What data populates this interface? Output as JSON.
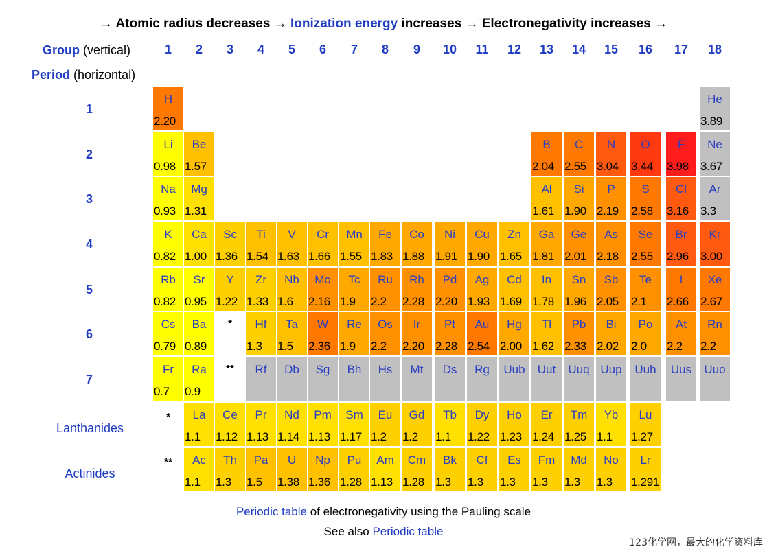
{
  "headline": {
    "arrow": "→",
    "p1": "Atomic radius decreases",
    "p2": "Ionization energy",
    "p3": "increases",
    "p4": "Electronegativity increases"
  },
  "group_label": {
    "bold": "Group",
    "rest": "(vertical)"
  },
  "period_label": {
    "bold": "Period",
    "rest": "(horizontal)"
  },
  "groups": [
    "1",
    "2",
    "3",
    "4",
    "5",
    "6",
    "7",
    "8",
    "9",
    "10",
    "11",
    "12",
    "13",
    "14",
    "15",
    "16",
    "17",
    "18"
  ],
  "periods": [
    "1",
    "2",
    "3",
    "4",
    "5",
    "6",
    "7"
  ],
  "lanthanides_label": "Lanthanides",
  "actinides_label": "Actinides",
  "marker_lanthanides": "*",
  "marker_actinides": "**",
  "colors": {
    "yellow": "#ffff00",
    "y2": "#ffe000",
    "y3": "#ffd000",
    "o1": "#ffc000",
    "o2": "#ffa800",
    "o3": "#ff9000",
    "o4": "#ff7800",
    "o5": "#ff5a10",
    "r1": "#ff3a10",
    "r2": "#ff1c1c",
    "gray": "#c0c0c0"
  },
  "elements": [
    {
      "s": "H",
      "v": "2.20",
      "p": 1,
      "g": 1,
      "c": "o4"
    },
    {
      "s": "He",
      "v": "3.89",
      "p": 1,
      "g": 18,
      "c": "gray"
    },
    {
      "s": "Li",
      "v": "0.98",
      "p": 2,
      "g": 1,
      "c": "yellow"
    },
    {
      "s": "Be",
      "v": "1.57",
      "p": 2,
      "g": 2,
      "c": "o1"
    },
    {
      "s": "B",
      "v": "2.04",
      "p": 2,
      "g": 13,
      "c": "o4"
    },
    {
      "s": "C",
      "v": "2.55",
      "p": 2,
      "g": 14,
      "c": "o4"
    },
    {
      "s": "N",
      "v": "3.04",
      "p": 2,
      "g": 15,
      "c": "o5"
    },
    {
      "s": "O",
      "v": "3.44",
      "p": 2,
      "g": 16,
      "c": "r1"
    },
    {
      "s": "F",
      "v": "3.98",
      "p": 2,
      "g": 17,
      "c": "r2"
    },
    {
      "s": "Ne",
      "v": "3.67",
      "p": 2,
      "g": 18,
      "c": "gray"
    },
    {
      "s": "Na",
      "v": "0.93",
      "p": 3,
      "g": 1,
      "c": "yellow"
    },
    {
      "s": "Mg",
      "v": "1.31",
      "p": 3,
      "g": 2,
      "c": "y2"
    },
    {
      "s": "Al",
      "v": "1.61",
      "p": 3,
      "g": 13,
      "c": "o1"
    },
    {
      "s": "Si",
      "v": "1.90",
      "p": 3,
      "g": 14,
      "c": "o2"
    },
    {
      "s": "P",
      "v": "2.19",
      "p": 3,
      "g": 15,
      "c": "o3"
    },
    {
      "s": "S",
      "v": "2.58",
      "p": 3,
      "g": 16,
      "c": "o4"
    },
    {
      "s": "Cl",
      "v": "3.16",
      "p": 3,
      "g": 17,
      "c": "o5"
    },
    {
      "s": "Ar",
      "v": "3.3",
      "p": 3,
      "g": 18,
      "c": "gray"
    },
    {
      "s": "K",
      "v": "0.82",
      "p": 4,
      "g": 1,
      "c": "yellow"
    },
    {
      "s": "Ca",
      "v": "1.00",
      "p": 4,
      "g": 2,
      "c": "y2"
    },
    {
      "s": "Sc",
      "v": "1.36",
      "p": 4,
      "g": 3,
      "c": "y3"
    },
    {
      "s": "Ti",
      "v": "1.54",
      "p": 4,
      "g": 4,
      "c": "o1"
    },
    {
      "s": "V",
      "v": "1.63",
      "p": 4,
      "g": 5,
      "c": "o1"
    },
    {
      "s": "Cr",
      "v": "1.66",
      "p": 4,
      "g": 6,
      "c": "o1"
    },
    {
      "s": "Mn",
      "v": "1.55",
      "p": 4,
      "g": 7,
      "c": "o1"
    },
    {
      "s": "Fe",
      "v": "1.83",
      "p": 4,
      "g": 8,
      "c": "o2"
    },
    {
      "s": "Co",
      "v": "1.88",
      "p": 4,
      "g": 9,
      "c": "o2"
    },
    {
      "s": "Ni",
      "v": "1.91",
      "p": 4,
      "g": 10,
      "c": "o2"
    },
    {
      "s": "Cu",
      "v": "1.90",
      "p": 4,
      "g": 11,
      "c": "o2"
    },
    {
      "s": "Zn",
      "v": "1.65",
      "p": 4,
      "g": 12,
      "c": "o1"
    },
    {
      "s": "Ga",
      "v": "1.81",
      "p": 4,
      "g": 13,
      "c": "o2"
    },
    {
      "s": "Ge",
      "v": "2.01",
      "p": 4,
      "g": 14,
      "c": "o3"
    },
    {
      "s": "As",
      "v": "2.18",
      "p": 4,
      "g": 15,
      "c": "o3"
    },
    {
      "s": "Se",
      "v": "2.55",
      "p": 4,
      "g": 16,
      "c": "o4"
    },
    {
      "s": "Br",
      "v": "2.96",
      "p": 4,
      "g": 17,
      "c": "o5"
    },
    {
      "s": "Kr",
      "v": "3.00",
      "p": 4,
      "g": 18,
      "c": "o5"
    },
    {
      "s": "Rb",
      "v": "0.82",
      "p": 5,
      "g": 1,
      "c": "yellow"
    },
    {
      "s": "Sr",
      "v": "0.95",
      "p": 5,
      "g": 2,
      "c": "yellow"
    },
    {
      "s": "Y",
      "v": "1.22",
      "p": 5,
      "g": 3,
      "c": "y3"
    },
    {
      "s": "Zr",
      "v": "1.33",
      "p": 5,
      "g": 4,
      "c": "y3"
    },
    {
      "s": "Nb",
      "v": "1.6",
      "p": 5,
      "g": 5,
      "c": "o1"
    },
    {
      "s": "Mo",
      "v": "2.16",
      "p": 5,
      "g": 6,
      "c": "o3"
    },
    {
      "s": "Tc",
      "v": "1.9",
      "p": 5,
      "g": 7,
      "c": "o2"
    },
    {
      "s": "Ru",
      "v": "2.2",
      "p": 5,
      "g": 8,
      "c": "o3"
    },
    {
      "s": "Rh",
      "v": "2.28",
      "p": 5,
      "g": 9,
      "c": "o3"
    },
    {
      "s": "Pd",
      "v": "2.20",
      "p": 5,
      "g": 10,
      "c": "o3"
    },
    {
      "s": "Ag",
      "v": "1.93",
      "p": 5,
      "g": 11,
      "c": "o2"
    },
    {
      "s": "Cd",
      "v": "1.69",
      "p": 5,
      "g": 12,
      "c": "o1"
    },
    {
      "s": "In",
      "v": "1.78",
      "p": 5,
      "g": 13,
      "c": "o1"
    },
    {
      "s": "Sn",
      "v": "1.96",
      "p": 5,
      "g": 14,
      "c": "o2"
    },
    {
      "s": "Sb",
      "v": "2.05",
      "p": 5,
      "g": 15,
      "c": "o3"
    },
    {
      "s": "Te",
      "v": "2.1",
      "p": 5,
      "g": 16,
      "c": "o3"
    },
    {
      "s": "I",
      "v": "2.66",
      "p": 5,
      "g": 17,
      "c": "o4"
    },
    {
      "s": "Xe",
      "v": "2.67",
      "p": 5,
      "g": 18,
      "c": "o4"
    },
    {
      "s": "Cs",
      "v": "0.79",
      "p": 6,
      "g": 1,
      "c": "yellow"
    },
    {
      "s": "Ba",
      "v": "0.89",
      "p": 6,
      "g": 2,
      "c": "yellow"
    },
    {
      "s": "Hf",
      "v": "1.3",
      "p": 6,
      "g": 4,
      "c": "y3"
    },
    {
      "s": "Ta",
      "v": "1.5",
      "p": 6,
      "g": 5,
      "c": "o1"
    },
    {
      "s": "W",
      "v": "2.36",
      "p": 6,
      "g": 6,
      "c": "o4"
    },
    {
      "s": "Re",
      "v": "1.9",
      "p": 6,
      "g": 7,
      "c": "o2"
    },
    {
      "s": "Os",
      "v": "2.2",
      "p": 6,
      "g": 8,
      "c": "o3"
    },
    {
      "s": "Ir",
      "v": "2.20",
      "p": 6,
      "g": 9,
      "c": "o3"
    },
    {
      "s": "Pt",
      "v": "2.28",
      "p": 6,
      "g": 10,
      "c": "o3"
    },
    {
      "s": "Au",
      "v": "2.54",
      "p": 6,
      "g": 11,
      "c": "o4"
    },
    {
      "s": "Hg",
      "v": "2.00",
      "p": 6,
      "g": 12,
      "c": "o2"
    },
    {
      "s": "Tl",
      "v": "1.62",
      "p": 6,
      "g": 13,
      "c": "o1"
    },
    {
      "s": "Pb",
      "v": "2.33",
      "p": 6,
      "g": 14,
      "c": "o3"
    },
    {
      "s": "Bi",
      "v": "2.02",
      "p": 6,
      "g": 15,
      "c": "o2"
    },
    {
      "s": "Po",
      "v": "2.0",
      "p": 6,
      "g": 16,
      "c": "o2"
    },
    {
      "s": "At",
      "v": "2.2",
      "p": 6,
      "g": 17,
      "c": "o3"
    },
    {
      "s": "Rn",
      "v": "2.2",
      "p": 6,
      "g": 18,
      "c": "o3"
    },
    {
      "s": "Fr",
      "v": "0.7",
      "p": 7,
      "g": 1,
      "c": "yellow"
    },
    {
      "s": "Ra",
      "v": "0.9",
      "p": 7,
      "g": 2,
      "c": "yellow"
    },
    {
      "s": "Rf",
      "v": "",
      "p": 7,
      "g": 4,
      "c": "gray"
    },
    {
      "s": "Db",
      "v": "",
      "p": 7,
      "g": 5,
      "c": "gray"
    },
    {
      "s": "Sg",
      "v": "",
      "p": 7,
      "g": 6,
      "c": "gray"
    },
    {
      "s": "Bh",
      "v": "",
      "p": 7,
      "g": 7,
      "c": "gray"
    },
    {
      "s": "Hs",
      "v": "",
      "p": 7,
      "g": 8,
      "c": "gray"
    },
    {
      "s": "Mt",
      "v": "",
      "p": 7,
      "g": 9,
      "c": "gray"
    },
    {
      "s": "Ds",
      "v": "",
      "p": 7,
      "g": 10,
      "c": "gray"
    },
    {
      "s": "Rg",
      "v": "",
      "p": 7,
      "g": 11,
      "c": "gray"
    },
    {
      "s": "Uub",
      "v": "",
      "p": 7,
      "g": 12,
      "c": "gray"
    },
    {
      "s": "Uut",
      "v": "",
      "p": 7,
      "g": 13,
      "c": "gray"
    },
    {
      "s": "Uuq",
      "v": "",
      "p": 7,
      "g": 14,
      "c": "gray"
    },
    {
      "s": "Uup",
      "v": "",
      "p": 7,
      "g": 15,
      "c": "gray"
    },
    {
      "s": "Uuh",
      "v": "",
      "p": 7,
      "g": 16,
      "c": "gray"
    },
    {
      "s": "Uus",
      "v": "",
      "p": 7,
      "g": 17,
      "c": "gray"
    },
    {
      "s": "Uuo",
      "v": "",
      "p": 7,
      "g": 18,
      "c": "gray"
    }
  ],
  "lanthanides": [
    {
      "s": "La",
      "v": "1.1"
    },
    {
      "s": "Ce",
      "v": "1.12"
    },
    {
      "s": "Pr",
      "v": "1.13"
    },
    {
      "s": "Nd",
      "v": "1.14"
    },
    {
      "s": "Pm",
      "v": "1.13"
    },
    {
      "s": "Sm",
      "v": "1.17"
    },
    {
      "s": "Eu",
      "v": "1.2"
    },
    {
      "s": "Gd",
      "v": "1.2"
    },
    {
      "s": "Tb",
      "v": "1.1"
    },
    {
      "s": "Dy",
      "v": "1.22"
    },
    {
      "s": "Ho",
      "v": "1.23"
    },
    {
      "s": "Er",
      "v": "1.24"
    },
    {
      "s": "Tm",
      "v": "1.25"
    },
    {
      "s": "Yb",
      "v": "1.1"
    },
    {
      "s": "Lu",
      "v": "1.27"
    }
  ],
  "actinides": [
    {
      "s": "Ac",
      "v": "1.1"
    },
    {
      "s": "Th",
      "v": "1.3"
    },
    {
      "s": "Pa",
      "v": "1.5"
    },
    {
      "s": "U",
      "v": "1.38"
    },
    {
      "s": "Np",
      "v": "1.36"
    },
    {
      "s": "Pu",
      "v": "1.28"
    },
    {
      "s": "Am",
      "v": "1.13"
    },
    {
      "s": "Cm",
      "v": "1.28"
    },
    {
      "s": "Bk",
      "v": "1.3"
    },
    {
      "s": "Cf",
      "v": "1.3"
    },
    {
      "s": "Es",
      "v": "1.3"
    },
    {
      "s": "Fm",
      "v": "1.3"
    },
    {
      "s": "Md",
      "v": "1.3"
    },
    {
      "s": "No",
      "v": "1.3"
    },
    {
      "s": "Lr",
      "v": "1.291"
    }
  ],
  "caption": {
    "link1": "Periodic table",
    "text1": "of electronegativity using the Pauling scale",
    "text2": "See also",
    "link2": "Periodic table"
  },
  "watermark": "123化学网，最大的化学资料库"
}
